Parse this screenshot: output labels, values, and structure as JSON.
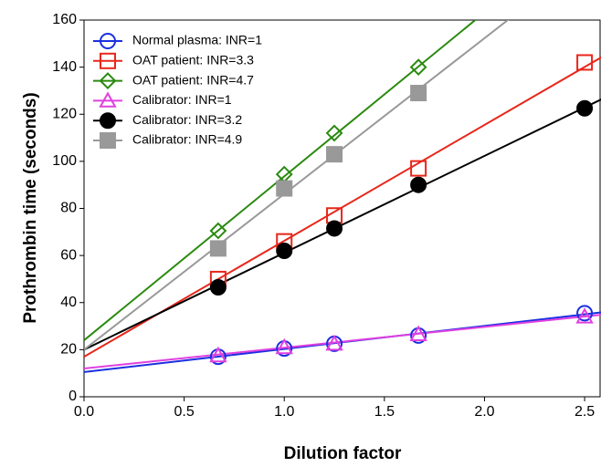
{
  "chart_data": {
    "type": "scatter",
    "xlabel": "Dilution factor",
    "ylabel": "Prothrombin time (seconds)",
    "xlim": [
      0,
      2.6
    ],
    "ylim": [
      0,
      160
    ],
    "xticks": [
      {
        "value": 0,
        "label": "0.0"
      },
      0.5,
      {
        "value": 1,
        "label": "1.0"
      },
      1.5,
      {
        "value": 2,
        "label": "2.0"
      },
      2.5
    ],
    "yticks": [
      0,
      20,
      40,
      60,
      80,
      100,
      120,
      140,
      160
    ],
    "legend": "upper left",
    "fit_x": [
      0,
      2.6
    ],
    "series": [
      {
        "name": "Normal plasma: INR=1",
        "color": "#1a2fe0",
        "marker": "circle",
        "filled": false,
        "x": [
          0.67,
          1.0,
          1.25,
          1.67,
          2.5
        ],
        "values": [
          17,
          20.5,
          22.5,
          26,
          35.5
        ],
        "fit": [
          10.5,
          36
        ]
      },
      {
        "name": "OAT patient: INR=3.3",
        "color": "#e8261a",
        "marker": "square",
        "filled": false,
        "x": [
          0.67,
          1.0,
          1.25,
          1.67,
          2.5
        ],
        "values": [
          50,
          66,
          77,
          97,
          142
        ],
        "fit": [
          17,
          145
        ]
      },
      {
        "name": "OAT patient: INR=4.7",
        "color": "#2a8a10",
        "marker": "diamond",
        "filled": false,
        "x": [
          0.67,
          1.0,
          1.25,
          1.67
        ],
        "values": [
          70.5,
          94.5,
          112,
          140
        ],
        "fit": [
          24,
          205
        ]
      },
      {
        "name": "Calibrator: INR=1",
        "color": "#e040e0",
        "marker": "triangle",
        "filled": false,
        "x": [
          0.67,
          1.0,
          1.25,
          1.67,
          2.5
        ],
        "values": [
          17.5,
          21,
          22.5,
          26.5,
          34
        ],
        "fit": [
          12,
          35
        ]
      },
      {
        "name": "Calibrator: INR=3.2",
        "color": "#000000",
        "marker": "circle",
        "filled": true,
        "x": [
          0.67,
          1.0,
          1.25,
          1.67,
          2.5
        ],
        "values": [
          46.5,
          62,
          71.5,
          90,
          122.5
        ],
        "fit": [
          20,
          127
        ]
      },
      {
        "name": "Calibrator: INR=4.9",
        "color": "#999999",
        "marker": "square",
        "filled": true,
        "x": [
          0.67,
          1.0,
          1.25,
          1.67
        ],
        "values": [
          63,
          88.5,
          103,
          129
        ],
        "fit": [
          20,
          192
        ]
      }
    ]
  }
}
